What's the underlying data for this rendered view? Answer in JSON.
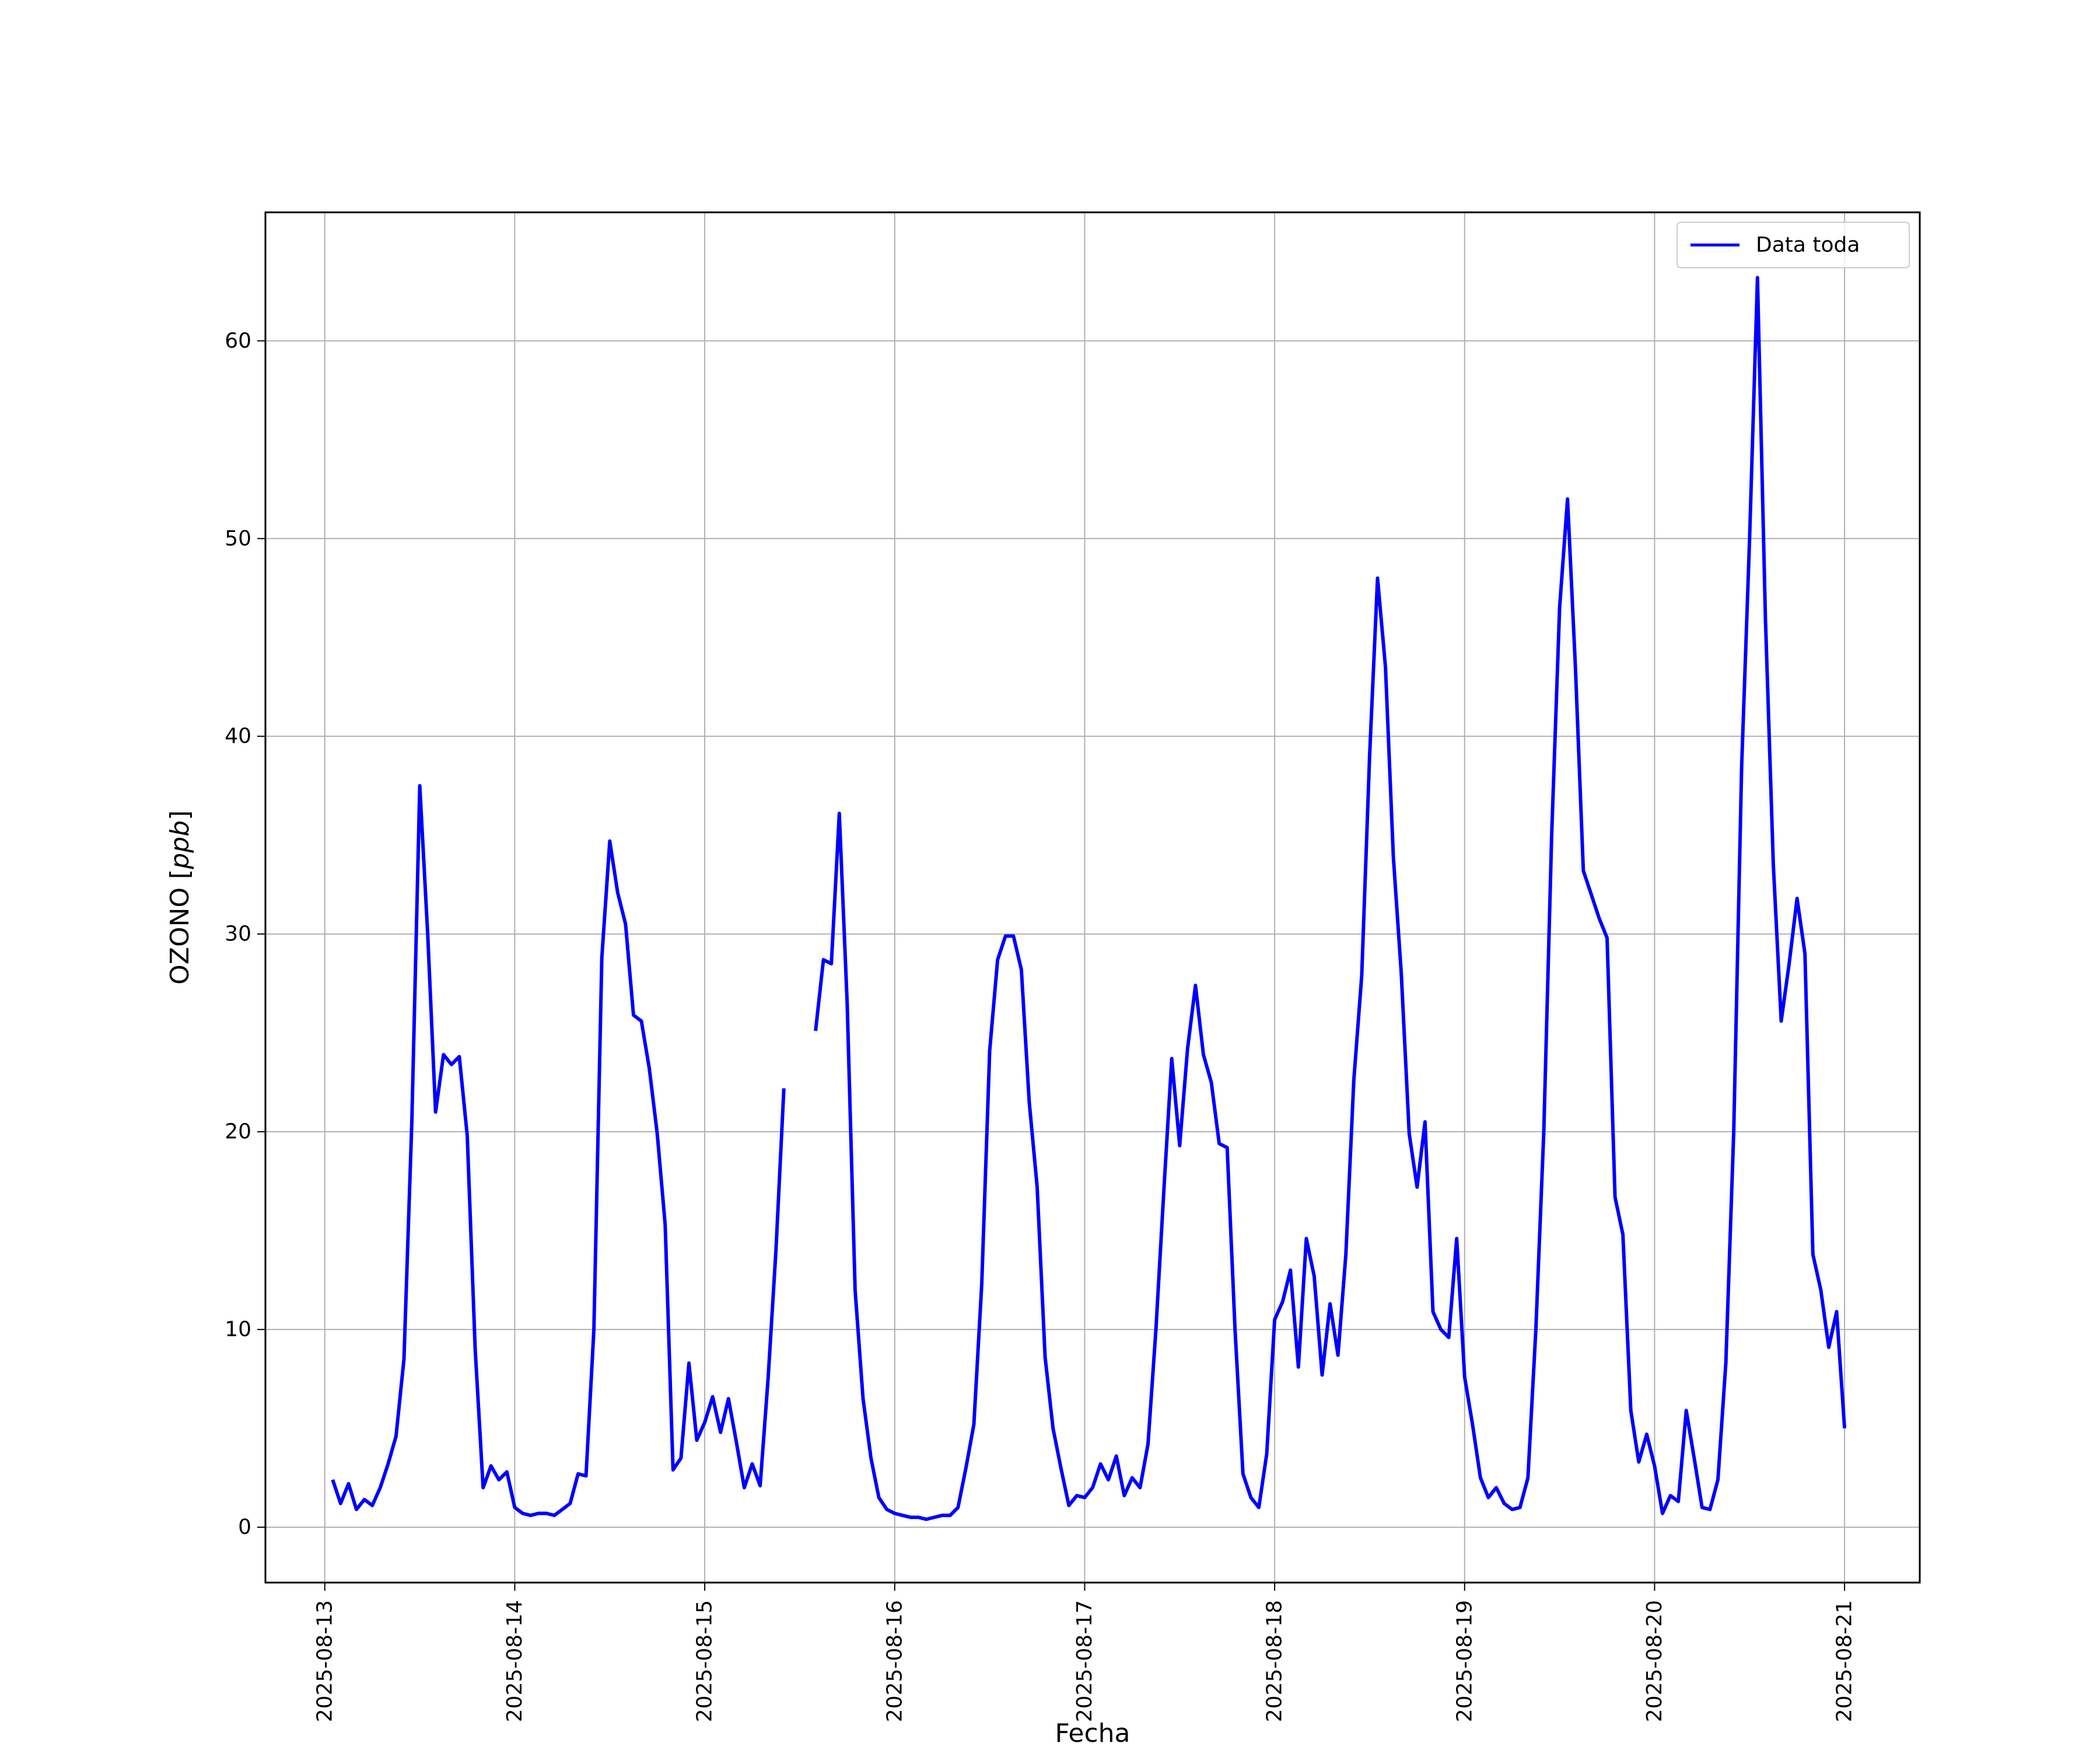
{
  "chart_data": {
    "type": "line",
    "xlabel": "Fecha",
    "ylabel": "OZONO",
    "ylabel_units": "ppb",
    "xlim": [
      "2025-08-12T16:30",
      "2025-08-21T09:30"
    ],
    "ylim": [
      -2.8,
      66.5
    ],
    "x_ticks": [
      "2025-08-13",
      "2025-08-14",
      "2025-08-15",
      "2025-08-16",
      "2025-08-17",
      "2025-08-18",
      "2025-08-19",
      "2025-08-20",
      "2025-08-21"
    ],
    "y_ticks": [
      0,
      10,
      20,
      30,
      40,
      50,
      60
    ],
    "grid": true,
    "legend_position": "top-right",
    "series": [
      {
        "name": "Data toda",
        "color": "#0000ff",
        "x": [
          "2025-08-13 01:00",
          "2025-08-13 02:00",
          "2025-08-13 03:00",
          "2025-08-13 04:00",
          "2025-08-13 05:00",
          "2025-08-13 06:00",
          "2025-08-13 07:00",
          "2025-08-13 08:00",
          "2025-08-13 09:00",
          "2025-08-13 10:00",
          "2025-08-13 11:00",
          "2025-08-13 12:00",
          "2025-08-13 13:00",
          "2025-08-13 14:00",
          "2025-08-13 15:00",
          "2025-08-13 16:00",
          "2025-08-13 17:00",
          "2025-08-13 18:00",
          "2025-08-13 19:00",
          "2025-08-13 20:00",
          "2025-08-13 21:00",
          "2025-08-13 22:00",
          "2025-08-13 23:00",
          "2025-08-14 00:00",
          "2025-08-14 01:00",
          "2025-08-14 02:00",
          "2025-08-14 03:00",
          "2025-08-14 04:00",
          "2025-08-14 05:00",
          "2025-08-14 06:00",
          "2025-08-14 07:00",
          "2025-08-14 08:00",
          "2025-08-14 09:00",
          "2025-08-14 10:00",
          "2025-08-14 11:00",
          "2025-08-14 12:00",
          "2025-08-14 13:00",
          "2025-08-14 14:00",
          "2025-08-14 15:00",
          "2025-08-14 16:00",
          "2025-08-14 17:00",
          "2025-08-14 18:00",
          "2025-08-14 19:00",
          "2025-08-14 20:00",
          "2025-08-14 21:00",
          "2025-08-14 22:00",
          "2025-08-14 23:00",
          "2025-08-15 00:00",
          "2025-08-15 01:00",
          "2025-08-15 02:00",
          "2025-08-15 03:00",
          "2025-08-15 04:00",
          "2025-08-15 05:00",
          "2025-08-15 06:00",
          "2025-08-15 07:00",
          "2025-08-15 08:00",
          "2025-08-15 09:00",
          "2025-08-15 10:00",
          "2025-08-15 11:00",
          "2025-08-15 12:00",
          "2025-08-15 13:00",
          "2025-08-15 14:00",
          "2025-08-15 15:00",
          "2025-08-15 16:00",
          "2025-08-15 17:00",
          "2025-08-15 18:00",
          "2025-08-15 19:00",
          "2025-08-15 20:00",
          "2025-08-15 21:00",
          "2025-08-15 22:00",
          "2025-08-15 23:00",
          "2025-08-16 00:00",
          "2025-08-16 01:00",
          "2025-08-16 02:00",
          "2025-08-16 03:00",
          "2025-08-16 04:00",
          "2025-08-16 05:00",
          "2025-08-16 06:00",
          "2025-08-16 07:00",
          "2025-08-16 08:00",
          "2025-08-16 09:00",
          "2025-08-16 10:00",
          "2025-08-16 11:00",
          "2025-08-16 12:00",
          "2025-08-16 13:00",
          "2025-08-16 14:00",
          "2025-08-16 15:00",
          "2025-08-16 16:00",
          "2025-08-16 17:00",
          "2025-08-16 18:00",
          "2025-08-16 19:00",
          "2025-08-16 20:00",
          "2025-08-16 21:00",
          "2025-08-16 22:00",
          "2025-08-16 23:00",
          "2025-08-17 00:00",
          "2025-08-17 01:00",
          "2025-08-17 02:00",
          "2025-08-17 03:00",
          "2025-08-17 04:00",
          "2025-08-17 05:00",
          "2025-08-17 06:00",
          "2025-08-17 07:00",
          "2025-08-17 08:00",
          "2025-08-17 09:00",
          "2025-08-17 10:00",
          "2025-08-17 11:00",
          "2025-08-17 12:00",
          "2025-08-17 13:00",
          "2025-08-17 14:00",
          "2025-08-17 15:00",
          "2025-08-17 16:00",
          "2025-08-17 17:00",
          "2025-08-17 18:00",
          "2025-08-17 19:00",
          "2025-08-17 20:00",
          "2025-08-17 21:00",
          "2025-08-17 22:00",
          "2025-08-17 23:00",
          "2025-08-18 00:00",
          "2025-08-18 01:00",
          "2025-08-18 02:00",
          "2025-08-18 03:00",
          "2025-08-18 04:00",
          "2025-08-18 05:00",
          "2025-08-18 06:00",
          "2025-08-18 07:00",
          "2025-08-18 08:00",
          "2025-08-18 09:00",
          "2025-08-18 10:00",
          "2025-08-18 11:00",
          "2025-08-18 12:00",
          "2025-08-18 13:00",
          "2025-08-18 14:00",
          "2025-08-18 15:00",
          "2025-08-18 16:00",
          "2025-08-18 17:00",
          "2025-08-18 18:00",
          "2025-08-18 19:00",
          "2025-08-18 20:00",
          "2025-08-18 21:00",
          "2025-08-18 22:00",
          "2025-08-18 23:00",
          "2025-08-19 00:00",
          "2025-08-19 01:00",
          "2025-08-19 02:00",
          "2025-08-19 03:00",
          "2025-08-19 04:00",
          "2025-08-19 05:00",
          "2025-08-19 06:00",
          "2025-08-19 07:00",
          "2025-08-19 08:00",
          "2025-08-19 09:00",
          "2025-08-19 10:00",
          "2025-08-19 11:00",
          "2025-08-19 12:00",
          "2025-08-19 13:00",
          "2025-08-19 14:00",
          "2025-08-19 15:00",
          "2025-08-19 16:00",
          "2025-08-19 17:00",
          "2025-08-19 18:00",
          "2025-08-19 19:00",
          "2025-08-19 20:00",
          "2025-08-19 21:00",
          "2025-08-19 22:00",
          "2025-08-19 23:00",
          "2025-08-20 00:00",
          "2025-08-20 01:00",
          "2025-08-20 02:00",
          "2025-08-20 03:00",
          "2025-08-20 04:00",
          "2025-08-20 05:00",
          "2025-08-20 06:00",
          "2025-08-20 07:00",
          "2025-08-20 08:00",
          "2025-08-20 09:00",
          "2025-08-20 10:00",
          "2025-08-20 11:00",
          "2025-08-20 12:00",
          "2025-08-20 13:00",
          "2025-08-20 14:00",
          "2025-08-20 15:00",
          "2025-08-20 16:00",
          "2025-08-20 17:00",
          "2025-08-20 18:00",
          "2025-08-20 19:00",
          "2025-08-20 20:00",
          "2025-08-20 21:00",
          "2025-08-20 22:00",
          "2025-08-20 23:00",
          "2025-08-21 00:00"
        ],
        "values": [
          2.4,
          1.2,
          2.2,
          0.9,
          1.4,
          1.1,
          2.0,
          3.2,
          4.6,
          8.5,
          20.5,
          37.5,
          30.0,
          21.0,
          23.9,
          23.4,
          23.8,
          19.8,
          9.0,
          2.0,
          3.1,
          2.4,
          2.8,
          1.0,
          0.7,
          0.6,
          0.7,
          0.7,
          0.6,
          0.9,
          1.2,
          2.7,
          2.6,
          10.0,
          28.8,
          34.7,
          32.1,
          30.5,
          25.9,
          25.6,
          23.2,
          19.9,
          15.3,
          2.9,
          3.5,
          8.3,
          4.4,
          5.3,
          6.6,
          4.8,
          6.5,
          4.3,
          2.0,
          3.2,
          2.1,
          7.5,
          14.0,
          22.2,
          null,
          null,
          null,
          25.1,
          28.7,
          28.5,
          36.1,
          26.5,
          12.0,
          6.5,
          3.5,
          1.5,
          0.9,
          0.7,
          0.6,
          0.5,
          0.5,
          0.4,
          0.5,
          0.6,
          0.6,
          1.0,
          3.0,
          5.2,
          12.3,
          24.1,
          28.7,
          29.9,
          29.9,
          28.2,
          21.5,
          17.2,
          8.6,
          5.0,
          3.0,
          1.1,
          1.6,
          1.5,
          2.0,
          3.2,
          2.4,
          3.6,
          1.6,
          2.5,
          2.0,
          4.2,
          10.0,
          17.0,
          23.7,
          19.3,
          24.2,
          27.4,
          23.9,
          22.5,
          19.4,
          19.2,
          10.0,
          2.7,
          1.5,
          1.0,
          3.7,
          10.5,
          11.4,
          13.0,
          8.1,
          14.6,
          12.7,
          7.7,
          11.3,
          8.7,
          13.8,
          22.6,
          27.9,
          39.0,
          48.0,
          43.5,
          33.9,
          28.0,
          19.9,
          17.2,
          20.5,
          10.9,
          10.0,
          9.6,
          14.6,
          7.6,
          5.2,
          2.5,
          1.5,
          2.0,
          1.2,
          0.9,
          1.0,
          2.5,
          10.0,
          20.0,
          35.0,
          46.5,
          52.0,
          43.5,
          33.2,
          32.0,
          30.8,
          29.8,
          16.7,
          14.8,
          5.9,
          3.3,
          4.7,
          3.1,
          0.7,
          1.6,
          1.3,
          5.9,
          3.5,
          1.0,
          0.9,
          2.4,
          8.3,
          20.0,
          38.5,
          50.0,
          63.2,
          46.0,
          33.5,
          25.6,
          28.5,
          31.8,
          29.0,
          13.8,
          12.0,
          9.1,
          10.9,
          5.0
        ]
      }
    ]
  }
}
